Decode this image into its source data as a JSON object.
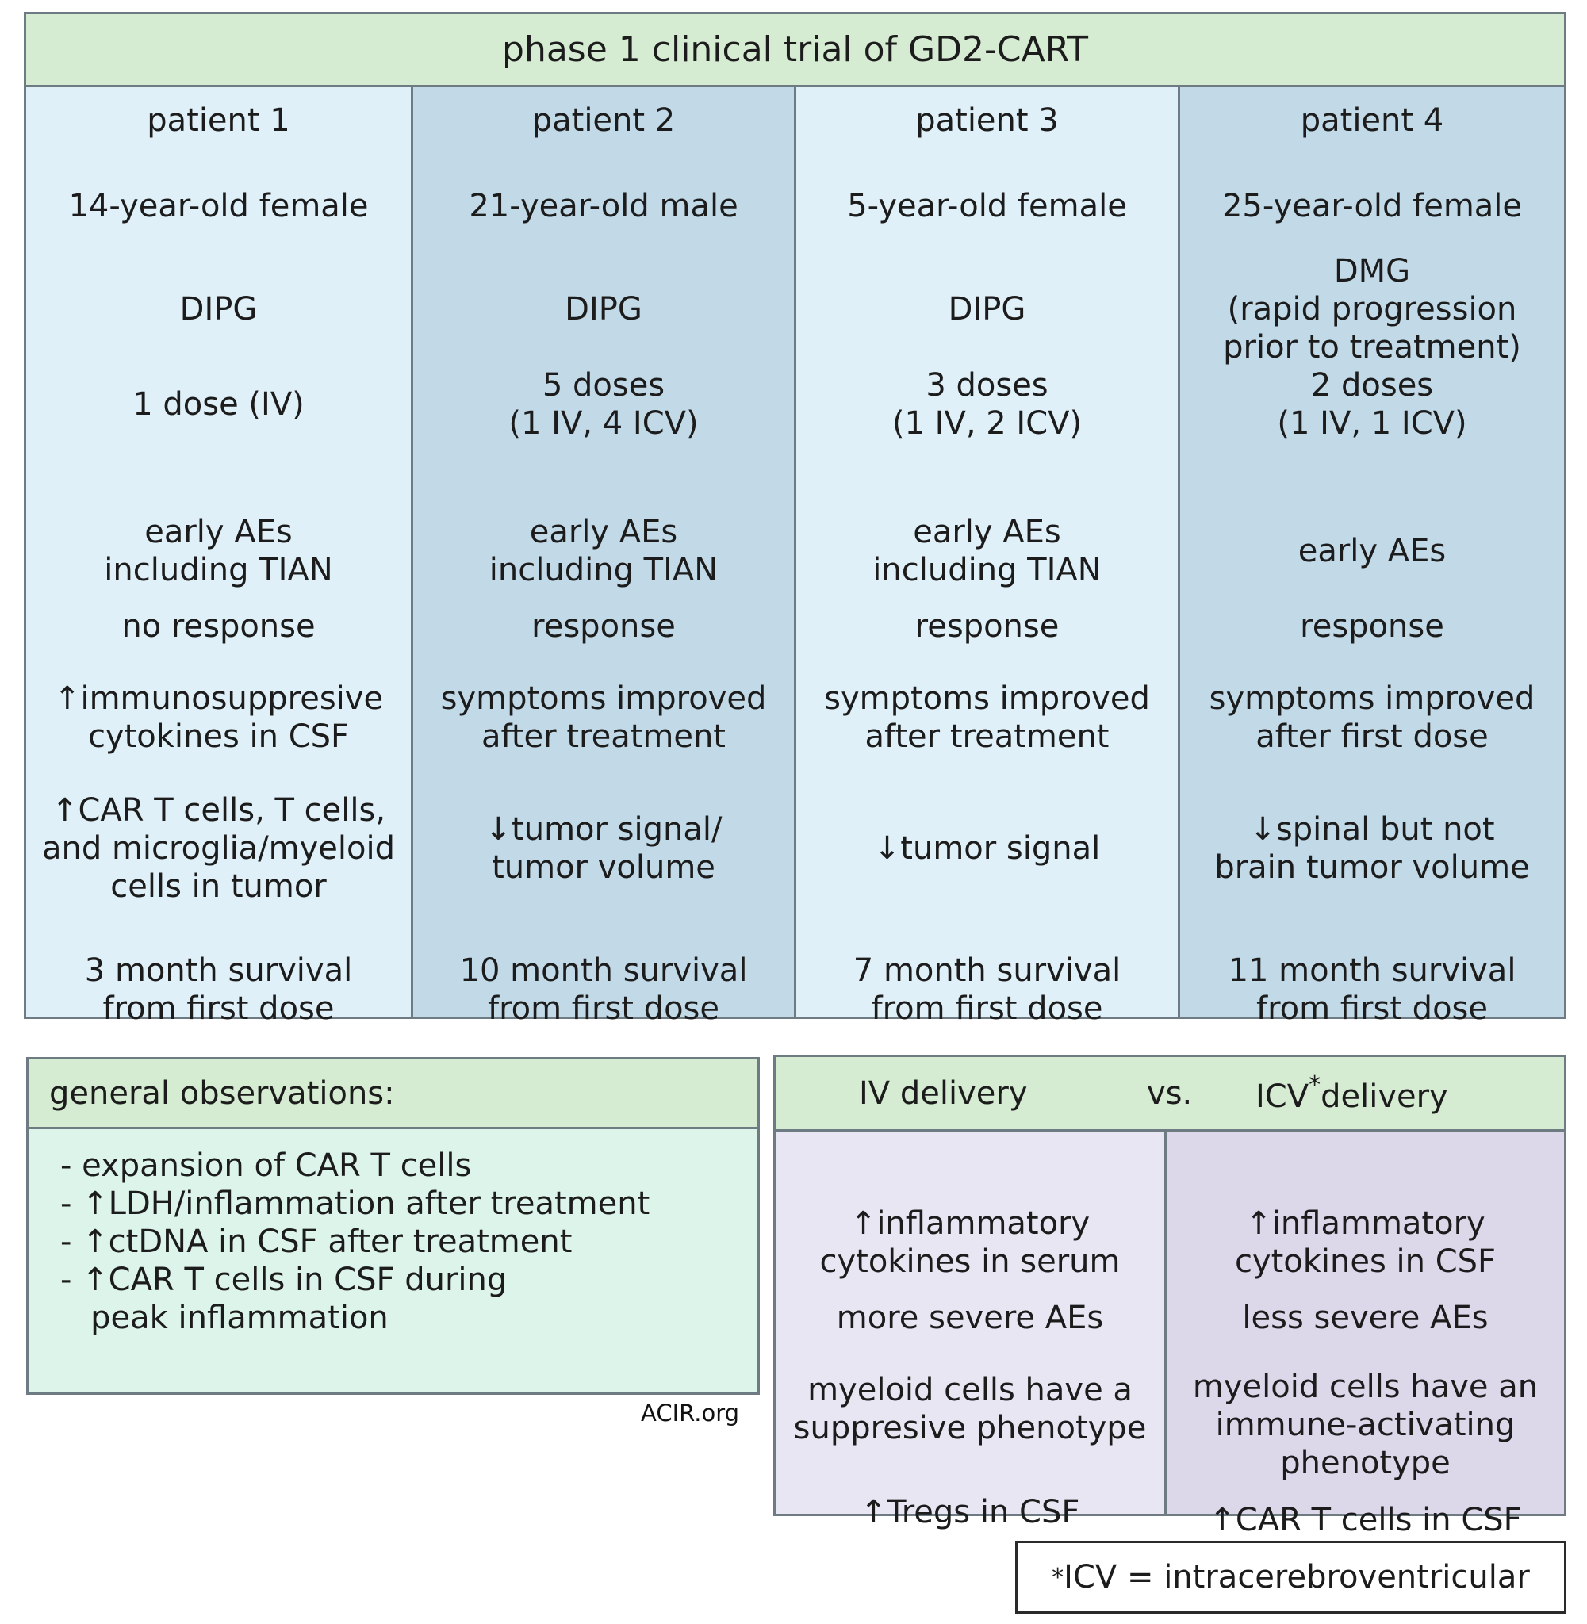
{
  "trial": {
    "title": "phase 1 clinical trial of GD2-CART",
    "colors": {
      "header": "#d5ecd2",
      "light_column": "#dff0f8",
      "dark_column": "#c2dae8"
    },
    "patients": [
      {
        "label": "patient 1",
        "age_sex": "14-year-old female",
        "diagnosis": [
          "DIPG"
        ],
        "doses": [
          "1 dose (IV)"
        ],
        "adverse_events": [
          "early AEs",
          "including TIAN"
        ],
        "response": "no response",
        "clinical": [
          "↑immunosuppresive",
          "cytokines in CSF"
        ],
        "imaging": [
          "↑CAR T cells, T cells,",
          "and microglia/myeloid",
          "cells in tumor"
        ],
        "survival": [
          "3 month survival",
          "from first dose"
        ]
      },
      {
        "label": "patient 2",
        "age_sex": "21-year-old male",
        "diagnosis": [
          "DIPG"
        ],
        "doses": [
          "5 doses",
          "(1 IV, 4 ICV)"
        ],
        "adverse_events": [
          "early AEs",
          "including TIAN"
        ],
        "response": "response",
        "clinical": [
          "symptoms improved",
          "after treatment"
        ],
        "imaging": [
          "↓tumor signal/",
          "tumor volume"
        ],
        "survival": [
          "10 month survival",
          "from first dose"
        ]
      },
      {
        "label": "patient 3",
        "age_sex": "5-year-old female",
        "diagnosis": [
          "DIPG"
        ],
        "doses": [
          "3 doses",
          "(1 IV, 2 ICV)"
        ],
        "adverse_events": [
          "early AEs",
          "including TIAN"
        ],
        "response": "response",
        "clinical": [
          "symptoms improved",
          "after treatment"
        ],
        "imaging": [
          "↓tumor signal"
        ],
        "survival": [
          "7 month survival",
          "from first dose"
        ]
      },
      {
        "label": "patient 4",
        "age_sex": "25-year-old female",
        "diagnosis": [
          "DMG",
          "(rapid progression",
          "prior to treatment)"
        ],
        "doses": [
          "2 doses",
          "(1 IV, 1 ICV)"
        ],
        "adverse_events": [
          "early AEs"
        ],
        "response": "response",
        "clinical": [
          "symptoms improved",
          "after first dose"
        ],
        "imaging": [
          "↓spinal but not",
          "brain tumor volume"
        ],
        "survival": [
          "11 month survival",
          "from first dose"
        ]
      }
    ]
  },
  "observations": {
    "title": "general observations:",
    "colors": {
      "header": "#d5ecd2",
      "body": "#dcf4ea"
    },
    "items": [
      "- expansion of CAR T cells",
      "- ↑LDH/inflammation after treatment",
      "- ↑ctDNA in CSF after treatment",
      "- ↑CAR T cells in CSF during",
      "   peak inflammation"
    ]
  },
  "credit": "ACIR.org",
  "comparison": {
    "iv_title": "IV delivery",
    "vs": "vs.",
    "icv_title": "ICV",
    "icv_star": "*",
    "icv_title_suffix": "delivery",
    "iv": [
      [
        "↑inflammatory",
        "cytokines in serum"
      ],
      [
        "more severe AEs"
      ],
      [
        "myeloid cells have a",
        "suppresive phenotype"
      ],
      [
        "↑Tregs in CSF"
      ]
    ],
    "icv": [
      [
        "↑inflammatory",
        "cytokines in CSF"
      ],
      [
        "less severe AEs"
      ],
      [
        "myeloid cells have an",
        "immune-activating",
        "phenotype"
      ],
      [
        "↑CAR T cells in CSF"
      ]
    ]
  },
  "footnote": {
    "star": "*",
    "text": "ICV = intracerebroventricular"
  }
}
